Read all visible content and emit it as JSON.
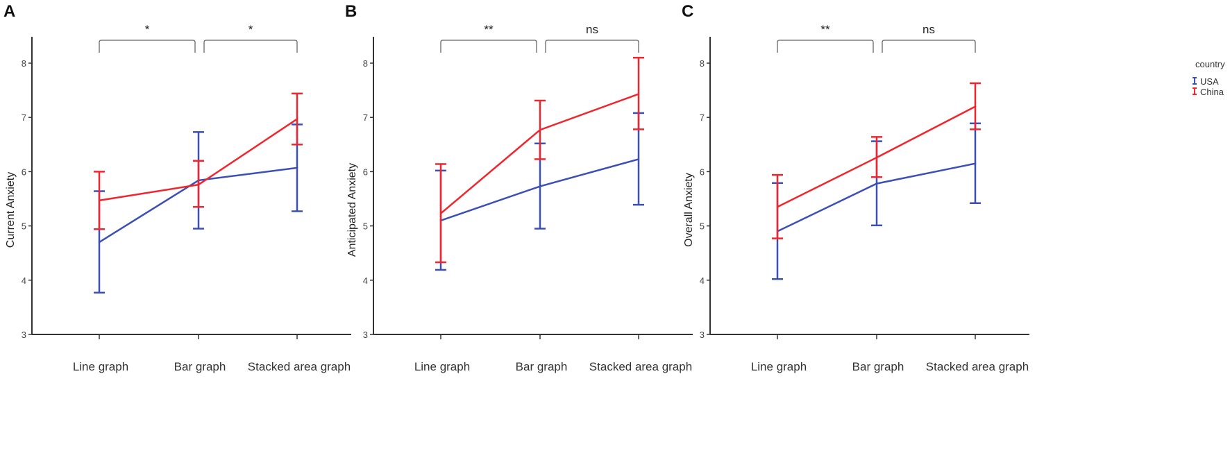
{
  "colors": {
    "USA": "#3b4fb5",
    "China": "#f0262f",
    "axis": "#333333",
    "bracket": "#666666"
  },
  "legend": {
    "title": "country",
    "entries": [
      "USA",
      "China"
    ]
  },
  "chart_data": [
    {
      "type": "line",
      "panel": "A",
      "ylabel": "Current Anxiety",
      "xlabel": "",
      "categories": [
        "Line graph",
        "Bar graph",
        "Stacked area graph"
      ],
      "ylim": [
        3,
        8.5
      ],
      "yticks": [
        "3",
        "4",
        "5",
        "6",
        "7",
        "8"
      ],
      "significance": [
        "*",
        "*"
      ],
      "series": [
        {
          "name": "USA",
          "values": [
            4.7,
            5.84,
            6.07
          ],
          "lower": [
            3.77,
            4.95,
            5.27
          ],
          "upper": [
            5.64,
            6.73,
            6.87
          ]
        },
        {
          "name": "China",
          "values": [
            5.47,
            5.76,
            6.97
          ],
          "lower": [
            4.94,
            5.35,
            6.5
          ],
          "upper": [
            6.0,
            6.2,
            7.44
          ]
        }
      ]
    },
    {
      "type": "line",
      "panel": "B",
      "ylabel": "Anticipated Anxiety",
      "xlabel": "",
      "categories": [
        "Line graph",
        "Bar graph",
        "Stacked area graph"
      ],
      "ylim": [
        3,
        8.5
      ],
      "yticks": [
        "3",
        "4",
        "5",
        "6",
        "7",
        "8"
      ],
      "significance": [
        "**",
        "ns"
      ],
      "series": [
        {
          "name": "USA",
          "values": [
            5.1,
            5.73,
            6.23
          ],
          "lower": [
            4.19,
            4.95,
            5.39
          ],
          "upper": [
            6.02,
            6.52,
            7.08
          ]
        },
        {
          "name": "China",
          "values": [
            5.23,
            6.77,
            7.43
          ],
          "lower": [
            4.33,
            6.23,
            6.78
          ],
          "upper": [
            6.14,
            7.31,
            8.1
          ]
        }
      ]
    },
    {
      "type": "line",
      "panel": "C",
      "ylabel": "Overall Anxiety",
      "xlabel": "",
      "categories": [
        "Line graph",
        "Bar graph",
        "Stacked area graph"
      ],
      "ylim": [
        3,
        8.5
      ],
      "yticks": [
        "3",
        "4",
        "5",
        "6",
        "7",
        "8"
      ],
      "significance": [
        "**",
        "ns"
      ],
      "series": [
        {
          "name": "USA",
          "values": [
            4.9,
            5.78,
            6.15
          ],
          "lower": [
            4.02,
            5.01,
            5.42
          ],
          "upper": [
            5.79,
            6.56,
            6.89
          ]
        },
        {
          "name": "China",
          "values": [
            5.35,
            6.26,
            7.2
          ],
          "lower": [
            4.77,
            5.9,
            6.78
          ],
          "upper": [
            5.94,
            6.64,
            7.63
          ]
        }
      ]
    }
  ]
}
